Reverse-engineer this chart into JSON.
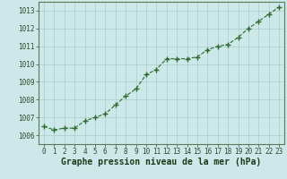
{
  "hours": [
    0,
    1,
    2,
    3,
    4,
    5,
    6,
    7,
    8,
    9,
    10,
    11,
    12,
    13,
    14,
    15,
    16,
    17,
    18,
    19,
    20,
    21,
    22,
    23
  ],
  "pressure": [
    1006.5,
    1006.3,
    1006.4,
    1006.4,
    1006.8,
    1007.0,
    1007.2,
    1007.7,
    1008.2,
    1008.6,
    1009.4,
    1009.7,
    1010.3,
    1010.3,
    1010.3,
    1010.4,
    1010.8,
    1011.0,
    1011.1,
    1011.5,
    1012.0,
    1012.4,
    1012.8,
    1013.2
  ],
  "line_color": "#2d6a2d",
  "marker_color": "#2d6a2d",
  "bg_plot": "#cce8e8",
  "bg_fig": "#cce8e8",
  "grid_color": "#aacccc",
  "xlabel": "Graphe pression niveau de la mer (hPa)",
  "xlabel_color": "#1a3a1a",
  "ylim_min": 1005.5,
  "ylim_max": 1013.5,
  "yticks": [
    1006,
    1007,
    1008,
    1009,
    1010,
    1011,
    1012,
    1013
  ],
  "xticks": [
    0,
    1,
    2,
    3,
    4,
    5,
    6,
    7,
    8,
    9,
    10,
    11,
    12,
    13,
    14,
    15,
    16,
    17,
    18,
    19,
    20,
    21,
    22,
    23
  ],
  "tick_color": "#2d4a2d",
  "spine_color": "#5a7a5a",
  "tick_fontsize": 5.5,
  "xlabel_fontsize": 7.0
}
